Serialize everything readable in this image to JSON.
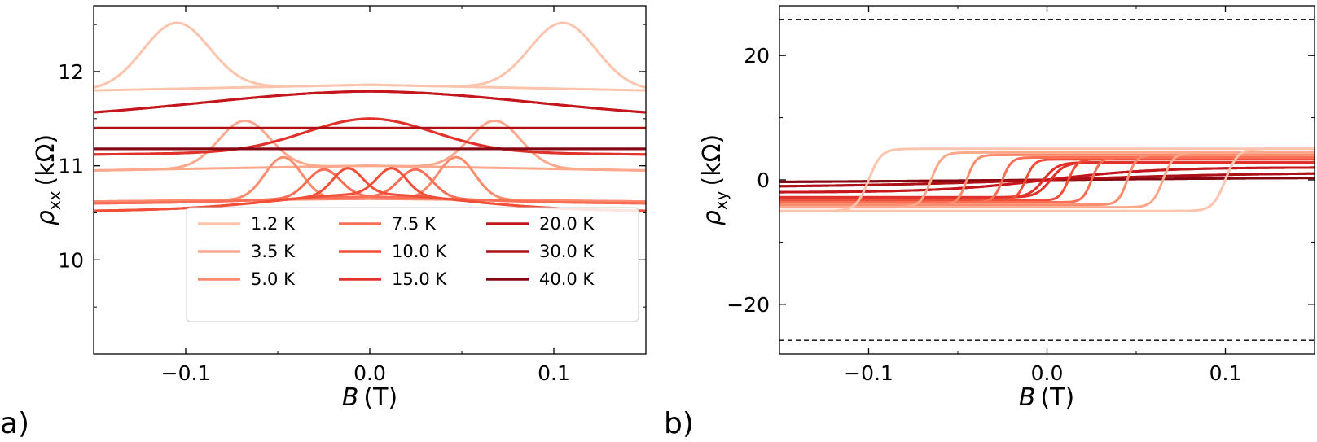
{
  "chart_data": [
    {
      "panel_label": "a)",
      "type": "line",
      "xlabel_symbol": "B",
      "xlabel_unit": "(T)",
      "ylabel_symbol": "ρ",
      "ylabel_subscript": "xx",
      "ylabel_unit": "(kΩ)",
      "xlim": [
        -0.15,
        0.15
      ],
      "ylim": [
        9.0,
        12.7
      ],
      "xticks": [
        "−0.1",
        "0.0",
        "0.1"
      ],
      "xtick_values": [
        -0.1,
        0.0,
        0.1
      ],
      "yticks": [
        "10",
        "11",
        "12"
      ],
      "ytick_values": [
        10,
        11,
        12
      ],
      "legend_position": "lower-right",
      "series": [
        {
          "name": "1.2 K",
          "color": "#fcc4ac",
          "base": 11.8,
          "high": 11.86,
          "peak_x": 0.105,
          "peak_amp": 0.7,
          "peak_w": 0.018,
          "center_bump": 0.0,
          "center_w": 0.05
        },
        {
          "name": "3.5 K",
          "color": "#fca88c",
          "base": 10.95,
          "high": 11.0,
          "peak_x": 0.068,
          "peak_amp": 0.5,
          "peak_w": 0.014,
          "center_bump": 0.0,
          "center_w": 0.05
        },
        {
          "name": "5.0 K",
          "color": "#fb8c6e",
          "base": 10.62,
          "high": 10.65,
          "peak_x": 0.047,
          "peak_amp": 0.45,
          "peak_w": 0.01,
          "center_bump": 0.0,
          "center_w": 0.05
        },
        {
          "name": "7.5 K",
          "color": "#f96e54",
          "base": 10.6,
          "high": 10.62,
          "peak_x": 0.025,
          "peak_amp": 0.3,
          "peak_w": 0.009,
          "center_bump": 0.05,
          "center_w": 0.05
        },
        {
          "name": "10.0 K",
          "color": "#f14f38",
          "base": 10.52,
          "high": 10.55,
          "peak_x": 0.012,
          "peak_amp": 0.28,
          "peak_w": 0.008,
          "center_bump": 0.15,
          "center_w": 0.05
        },
        {
          "name": "15.0 K",
          "color": "#e0322a",
          "base": 11.12,
          "high": 11.15,
          "peak_x": 0.0,
          "peak_amp": 0.0,
          "peak_w": 0.01,
          "center_bump": 0.35,
          "center_w": 0.035
        },
        {
          "name": "20.0 K",
          "color": "#c4161c",
          "base": 11.5,
          "high": 11.52,
          "peak_x": 0.0,
          "peak_amp": 0.0,
          "peak_w": 0.01,
          "center_bump": 0.27,
          "center_w": 0.09
        },
        {
          "name": "30.0 K",
          "color": "#ad1016",
          "base": 11.4,
          "high": 11.4,
          "peak_x": 0.0,
          "peak_amp": 0.0,
          "peak_w": 0.01,
          "center_bump": 0.0,
          "center_w": 0.05
        },
        {
          "name": "40.0 K",
          "color": "#840712",
          "base": 11.18,
          "high": 11.18,
          "peak_x": 0.0,
          "peak_amp": 0.0,
          "peak_w": 0.01,
          "center_bump": 0.0,
          "center_w": 0.05
        }
      ]
    },
    {
      "panel_label": "b)",
      "type": "line",
      "xlabel_symbol": "B",
      "xlabel_unit": "(T)",
      "ylabel_symbol": "ρ",
      "ylabel_subscript": "xy",
      "ylabel_unit": "(kΩ)",
      "xlim": [
        -0.15,
        0.15
      ],
      "ylim": [
        -28,
        28
      ],
      "xticks": [
        "−0.1",
        "0.0",
        "0.1"
      ],
      "xtick_values": [
        -0.1,
        0.0,
        0.1
      ],
      "yticks": [
        "−20",
        "0",
        "20"
      ],
      "ytick_values": [
        -20,
        0,
        20
      ],
      "reference_lines": [
        25.8,
        -25.8
      ],
      "series": [
        {
          "name": "1.2 K",
          "color": "#fcc4ac",
          "sat": 5.0,
          "hc": 0.1,
          "w": 0.007
        },
        {
          "name": "3.5 K",
          "color": "#fca88c",
          "sat": 4.4,
          "hc": 0.065,
          "w": 0.006
        },
        {
          "name": "5.0 K",
          "color": "#fb8c6e",
          "sat": 4.0,
          "hc": 0.045,
          "w": 0.005
        },
        {
          "name": "7.5 K",
          "color": "#f96e54",
          "sat": 3.6,
          "hc": 0.025,
          "w": 0.005
        },
        {
          "name": "10.0 K",
          "color": "#f14f38",
          "sat": 3.3,
          "hc": 0.012,
          "w": 0.005
        },
        {
          "name": "15.0 K",
          "color": "#e0322a",
          "sat": 2.8,
          "hc": 0.002,
          "w": 0.008
        },
        {
          "name": "20.0 K",
          "color": "#c4161c",
          "sat": 2.0,
          "hc": 0.0,
          "w": 0.06
        },
        {
          "name": "30.0 K",
          "color": "#ad1016",
          "sat": 1.2,
          "hc": 0.0,
          "w": 0.12
        },
        {
          "name": "40.0 K",
          "color": "#840712",
          "sat": 0.5,
          "hc": 0.0,
          "w": 0.2
        }
      ]
    }
  ]
}
